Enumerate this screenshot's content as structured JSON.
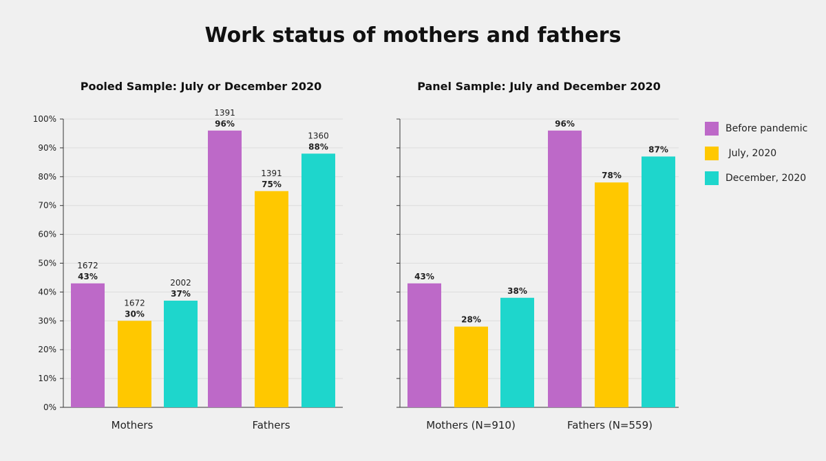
{
  "title": "Work status of mothers and fathers",
  "legend": [
    {
      "label": "Before pandemic",
      "color": "#bd69c8"
    },
    {
      "label": " July, 2020",
      "color": "#ffc800"
    },
    {
      "label": "December, 2020",
      "color": "#1ed6cc"
    }
  ],
  "chart_data": [
    {
      "type": "bar",
      "title": "Pooled Sample: July or December 2020",
      "categories": [
        "Mothers",
        "Fathers"
      ],
      "ylim": [
        0,
        100
      ],
      "yticks": [
        "0%",
        "10%",
        "20%",
        "30%",
        "40%",
        "50%",
        "60%",
        "70%",
        "80%",
        "90%",
        "100%"
      ],
      "grid": true,
      "series": [
        {
          "name": "Before pandemic",
          "values": [
            43,
            96
          ],
          "labels": [
            "43%",
            "96%"
          ],
          "n_labels": [
            "1672",
            "1391"
          ]
        },
        {
          "name": "July, 2020",
          "values": [
            30,
            75
          ],
          "labels": [
            "30%",
            "75%"
          ],
          "n_labels": [
            "1672",
            "1391"
          ]
        },
        {
          "name": "December, 2020",
          "values": [
            37,
            88
          ],
          "labels": [
            "37%",
            "88%"
          ],
          "n_labels": [
            "2002",
            "1360"
          ]
        }
      ]
    },
    {
      "type": "bar",
      "title": "Panel Sample: July and December 2020",
      "categories": [
        "Mothers (N=910)",
        "Fathers (N=559)"
      ],
      "ylim": [
        0,
        100
      ],
      "grid": true,
      "legend_position": "right",
      "series": [
        {
          "name": "Before pandemic",
          "values": [
            43,
            96
          ],
          "labels": [
            "43%",
            "96%"
          ]
        },
        {
          "name": "July, 2020",
          "values": [
            28,
            78
          ],
          "labels": [
            "28%",
            "78%"
          ]
        },
        {
          "name": "December, 2020",
          "values": [
            38,
            87
          ],
          "labels": [
            "38%",
            "87%"
          ]
        }
      ]
    }
  ]
}
